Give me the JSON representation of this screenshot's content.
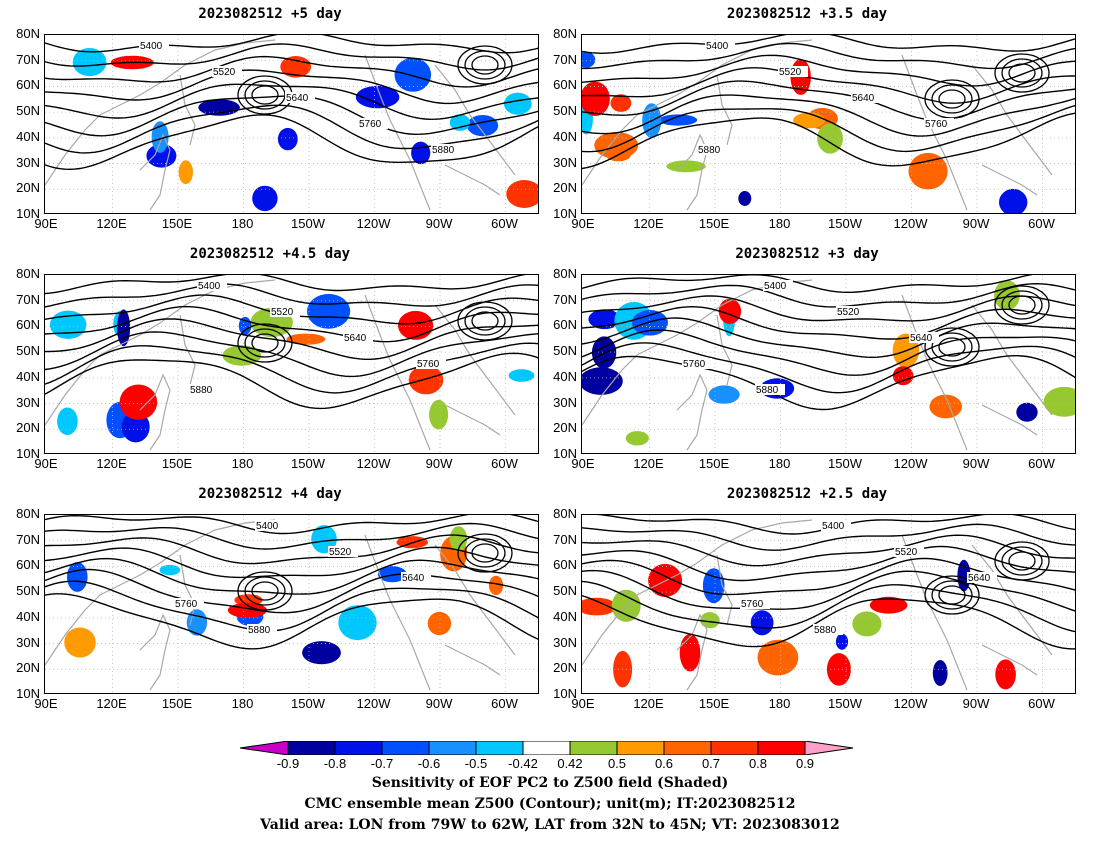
{
  "panels": [
    {
      "title": "2023082512  +5 day"
    },
    {
      "title": "2023082512  +3.5 day"
    },
    {
      "title": "2023082512  +4.5 day"
    },
    {
      "title": "2023082512  +3 day"
    },
    {
      "title": "2023082512  +4 day"
    },
    {
      "title": "2023082512  +2.5 day"
    }
  ],
  "axes": {
    "lat_ticks": [
      "80N",
      "70N",
      "60N",
      "50N",
      "40N",
      "30N",
      "20N",
      "10N"
    ],
    "lon_ticks": [
      "90E",
      "120E",
      "150E",
      "180",
      "150W",
      "120W",
      "90W",
      "60W"
    ]
  },
  "contour_labels": [
    "5400",
    "5520",
    "5640",
    "5760",
    "5880"
  ],
  "colorbar": {
    "labels": [
      "-0.9",
      "-0.8",
      "-0.7",
      "-0.6",
      "-0.5",
      "-0.42",
      "0.42",
      "0.5",
      "0.6",
      "0.7",
      "0.8",
      "0.9"
    ],
    "colors": [
      "#0000a0",
      "#0010e8",
      "#0050ff",
      "#1890ff",
      "#00c8ff",
      "#ffffff",
      "#96c832",
      "#ff9a00",
      "#ff6400",
      "#ff3200",
      "#ff0000"
    ],
    "low_extend_color": "#c800c8",
    "high_extend_color": "#ffa0c8"
  },
  "caption": {
    "line1": "Sensitivity of EOF PC2 to Z500 field (Shaded)",
    "line2": "CMC ensemble mean Z500 (Contour); unit(m); IT:2023082512",
    "line3": "Valid area: LON from 79W to 62W, LAT from 32N to 45N; VT: 2023083012"
  }
}
